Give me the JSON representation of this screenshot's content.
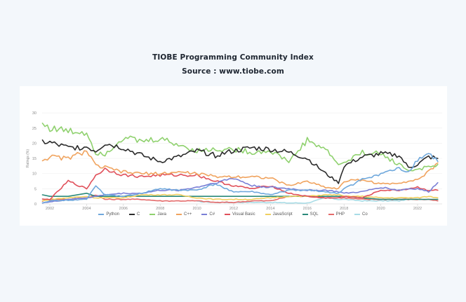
{
  "header": {
    "title": "TIOBE Programming Community Index",
    "subtitle": "Source : www.tiobe.com"
  },
  "chart_data": {
    "type": "line",
    "title": "TIOBE Programming Community Index",
    "subtitle": "Source : www.tiobe.com",
    "xlabel": "",
    "ylabel": "Ratings (%)",
    "ylim": [
      0,
      30
    ],
    "yticks": [
      0,
      5,
      10,
      15,
      20,
      25,
      30
    ],
    "xticks": [
      "2002",
      "2004",
      "2006",
      "2008",
      "2010",
      "2012",
      "2014",
      "2016",
      "2018",
      "2020",
      "2022"
    ],
    "grid": true,
    "legend_position": "bottom",
    "x": [
      2001.6,
      2002,
      2003,
      2004,
      2004.5,
      2005,
      2006,
      2007,
      2008,
      2009,
      2010,
      2011,
      2012,
      2013,
      2014,
      2015,
      2016,
      2017,
      2017.7,
      2018,
      2019,
      2020,
      2021,
      2021.5,
      2022,
      2022.6,
      2023.1
    ],
    "series": [
      {
        "name": "Python",
        "color": "#6fa8dc",
        "values": [
          0.5,
          1.0,
          1.2,
          1.5,
          6.0,
          3.0,
          2.5,
          3.5,
          5.0,
          4.5,
          4.5,
          6.5,
          4.0,
          4.0,
          3.0,
          4.5,
          4.5,
          4.0,
          3.5,
          5.0,
          8.0,
          10.0,
          11.5,
          10.5,
          14.5,
          16.5,
          14.0
        ]
      },
      {
        "name": "C",
        "color": "#2b2b2b",
        "values": [
          20.5,
          20.2,
          18.5,
          18.8,
          17.5,
          20.0,
          18.5,
          16.0,
          14.0,
          15.5,
          17.5,
          16.0,
          17.5,
          18.5,
          18.0,
          17.0,
          15.0,
          10.0,
          7.0,
          12.5,
          15.5,
          16.5,
          16.0,
          12.0,
          13.0,
          15.5,
          15.0
        ]
      },
      {
        "name": "Java",
        "color": "#8fd16e",
        "values": [
          26.5,
          25.0,
          24.0,
          23.5,
          17.0,
          16.5,
          22.0,
          20.5,
          21.5,
          19.5,
          17.5,
          18.0,
          18.0,
          17.0,
          17.5,
          14.0,
          21.0,
          18.0,
          13.0,
          13.5,
          17.0,
          16.5,
          13.0,
          11.0,
          11.5,
          12.0,
          13.0
        ]
      },
      {
        "name": "C++",
        "color": "#f0a35e",
        "values": [
          14.5,
          15.5,
          15.0,
          17.5,
          12.5,
          12.0,
          10.5,
          10.0,
          10.0,
          10.5,
          10.0,
          9.0,
          9.0,
          9.0,
          8.5,
          6.0,
          7.5,
          5.5,
          5.0,
          7.5,
          8.0,
          6.5,
          7.0,
          7.5,
          8.0,
          10.5,
          13.5
        ]
      },
      {
        "name": "C#",
        "color": "#7a7fd6",
        "values": [
          0.4,
          0.6,
          1.5,
          2.0,
          2.5,
          3.0,
          3.5,
          3.5,
          4.5,
          4.5,
          5.5,
          7.0,
          8.5,
          6.0,
          5.5,
          5.0,
          4.5,
          4.5,
          4.0,
          3.5,
          4.0,
          5.5,
          4.5,
          5.0,
          5.0,
          4.0,
          7.0
        ]
      },
      {
        "name": "Visual Basic",
        "color": "#e0505a",
        "values": [
          1.5,
          1.5,
          7.5,
          5.0,
          9.5,
          11.5,
          9.5,
          9.0,
          9.5,
          9.5,
          9.5,
          7.5,
          6.0,
          5.0,
          6.0,
          3.5,
          2.5,
          2.0,
          2.0,
          2.5,
          2.0,
          4.5,
          4.5,
          5.0,
          5.5,
          4.5,
          4.5
        ]
      },
      {
        "name": "JavaScript",
        "color": "#f0d060",
        "values": [
          1.0,
          1.5,
          2.0,
          2.5,
          2.0,
          2.0,
          2.0,
          3.0,
          3.0,
          3.0,
          2.0,
          1.5,
          1.5,
          1.5,
          2.0,
          2.5,
          2.5,
          3.0,
          3.0,
          2.5,
          2.5,
          2.0,
          2.0,
          2.0,
          2.0,
          2.5,
          2.0
        ]
      },
      {
        "name": "SQL",
        "color": "#2a8a7a",
        "values": [
          3.0,
          2.5,
          2.5,
          3.5,
          2.5,
          2.5,
          2.5,
          2.5,
          2.5,
          2.5,
          2.5,
          2.5,
          2.5,
          2.5,
          2.5,
          2.5,
          2.5,
          2.5,
          2.5,
          2.5,
          2.0,
          1.5,
          1.5,
          1.5,
          1.5,
          1.5,
          1.5
        ]
      },
      {
        "name": "PHP",
        "color": "#e46a6a",
        "values": [
          1.0,
          1.5,
          1.5,
          2.0,
          3.0,
          1.5,
          1.5,
          1.5,
          1.0,
          1.0,
          1.0,
          0.5,
          0.5,
          1.0,
          1.0,
          2.5,
          2.5,
          2.0,
          2.0,
          2.0,
          1.5,
          1.5,
          1.5,
          1.5,
          1.5,
          1.5,
          1.0
        ]
      },
      {
        "name": "Co",
        "color": "#a8dce6",
        "values": [
          null,
          null,
          null,
          null,
          null,
          null,
          null,
          null,
          null,
          null,
          0.8,
          0.5,
          0.5,
          0.5,
          0.5,
          0.3,
          0.3,
          2.0,
          1.5,
          1.5,
          1.0,
          1.0,
          1.0,
          1.5,
          1.5,
          1.5,
          1.5
        ]
      }
    ]
  }
}
